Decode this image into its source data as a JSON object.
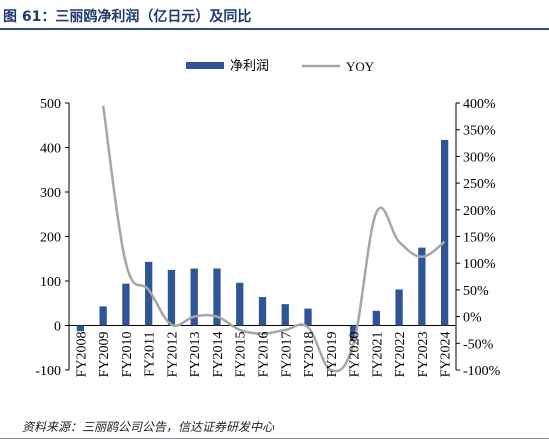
{
  "title": "图 61：三丽鸥净利润（亿日元）及同比",
  "source": "资料来源：三丽鸥公司公告，信达证券研发中心",
  "colors": {
    "bar": "#2f5597",
    "line": "#a6a6a6",
    "title": "#1f3a6e"
  },
  "chart_data": {
    "type": "bar",
    "categories": [
      "FY2008",
      "FY2009",
      "FY2010",
      "FY2011",
      "FY2012",
      "FY2013",
      "FY2014",
      "FY2015",
      "FY2016",
      "FY2017",
      "FY2018",
      "FY2019",
      "FY2020",
      "FY2021",
      "FY2022",
      "FY2023",
      "FY2024"
    ],
    "series": [
      {
        "name": "净利润",
        "type": "bar",
        "axis": "left",
        "values": [
          -13,
          43,
          94,
          143,
          125,
          128,
          128,
          96,
          64,
          48,
          38,
          0,
          -34,
          33,
          81,
          175,
          417
        ]
      },
      {
        "name": "YOY",
        "type": "line",
        "axis": "right",
        "smooth": true,
        "values": [
          null,
          395,
          100,
          50,
          -15,
          0,
          0,
          -25,
          -32,
          -25,
          -20,
          -100,
          -50,
          195,
          140,
          112,
          140
        ]
      }
    ],
    "y_left": {
      "min": -100,
      "max": 500,
      "step": 100,
      "ticks": [
        "-100",
        "0",
        "100",
        "200",
        "300",
        "400",
        "500"
      ]
    },
    "y_right": {
      "min": -100,
      "max": 400,
      "step": 50,
      "ticks": [
        "-100%",
        "-50%",
        "0%",
        "50%",
        "100%",
        "150%",
        "200%",
        "250%",
        "300%",
        "350%",
        "400%"
      ]
    },
    "legend": {
      "position": "top-center",
      "items": [
        "净利润",
        "YOY"
      ]
    },
    "grid": false
  }
}
